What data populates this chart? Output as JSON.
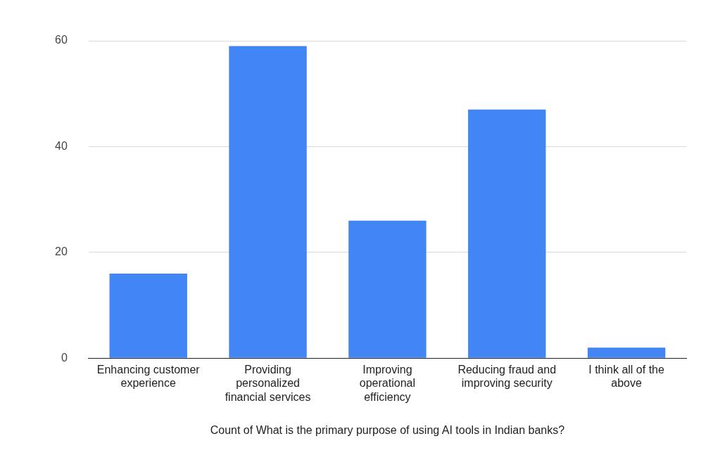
{
  "chart_data": {
    "type": "bar",
    "xlabel": "Count of What is the primary purpose of using AI tools in Indian banks?",
    "categories": [
      "Enhancing customer experience",
      "Providing personalized financial services",
      "Improving operational efficiency",
      "Reducing fraud and improving security",
      "I think all of the above"
    ],
    "values": [
      16,
      59,
      26,
      47,
      2
    ],
    "color": "#4285f4",
    "ylim": [
      0,
      60
    ],
    "yticks": [
      0,
      20,
      40,
      60
    ],
    "grid": "y",
    "legend": false
  }
}
